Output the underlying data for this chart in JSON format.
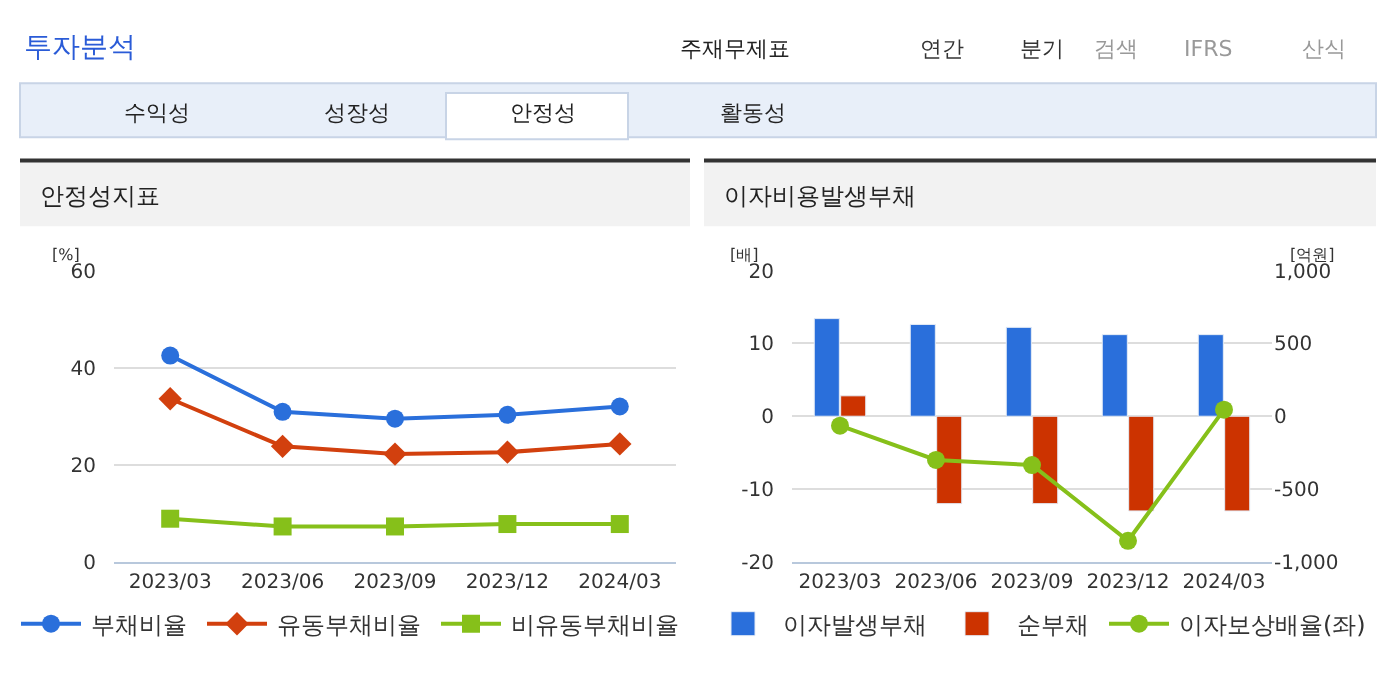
{
  "chart_data": [
    {
      "type": "line",
      "title": "안정성지표",
      "ylabel": "[%]",
      "categories": [
        "2023/03",
        "2023/06",
        "2023/09",
        "2023/12",
        "2024/03"
      ],
      "annotations": [
        "투자분석",
        "주재무제표",
        "연간",
        "분기",
        "검색",
        "IFRS",
        "산식",
        "수익성",
        "성장성",
        "안정성",
        "활동성"
      ],
      "series": [
        {
          "name": "부채비율",
          "color": "#2a6fdb",
          "marker": "circle",
          "values": [
            42.5,
            30.9,
            29.5,
            30.3,
            32.0
          ]
        },
        {
          "name": "유동부채비율",
          "color": "#d2400e",
          "marker": "diamond",
          "values": [
            33.6,
            23.8,
            22.2,
            22.6,
            24.3
          ]
        },
        {
          "name": "비유동부채비율",
          "color": "#86c01a",
          "marker": "square",
          "values": [
            8.9,
            7.3,
            7.3,
            7.8,
            7.8
          ]
        }
      ],
      "ylim": [
        0,
        60
      ],
      "yticks": [
        0,
        20,
        40,
        60
      ],
      "grid": "y",
      "legend": "bottom"
    },
    {
      "type": "bar",
      "title": "이자비용발생부채",
      "ylabel": "[배]",
      "y2label": "[억원]",
      "categories": [
        "2023/03",
        "2023/06",
        "2023/09",
        "2023/12",
        "2024/03"
      ],
      "series": [
        {
          "name": "이자발생부채",
          "color": "#2a6fdb",
          "axis": "y2",
          "values": [
            670,
            630,
            610,
            560,
            560
          ]
        },
        {
          "name": "순부채",
          "color": "#cc3300",
          "axis": "y2",
          "values": [
            140,
            -600,
            -600,
            -650,
            -650
          ]
        },
        {
          "name": "이자보상배율(좌)",
          "type": "line",
          "marker": "circle",
          "color": "#86c01a",
          "values": [
            -1.3,
            -6.0,
            -6.7,
            -17.1,
            0.9
          ]
        }
      ],
      "ylim": [
        -20,
        20
      ],
      "yticks": [
        -20,
        -10,
        0,
        10,
        20
      ],
      "y2lim": [
        -1000,
        1000
      ],
      "y2ticks": [
        {
          "value": -1000,
          "label": "-1,000"
        },
        -500,
        0,
        500,
        {
          "value": 1000,
          "label": "1,000"
        }
      ],
      "grid": "y",
      "legend": "bottom"
    }
  ]
}
